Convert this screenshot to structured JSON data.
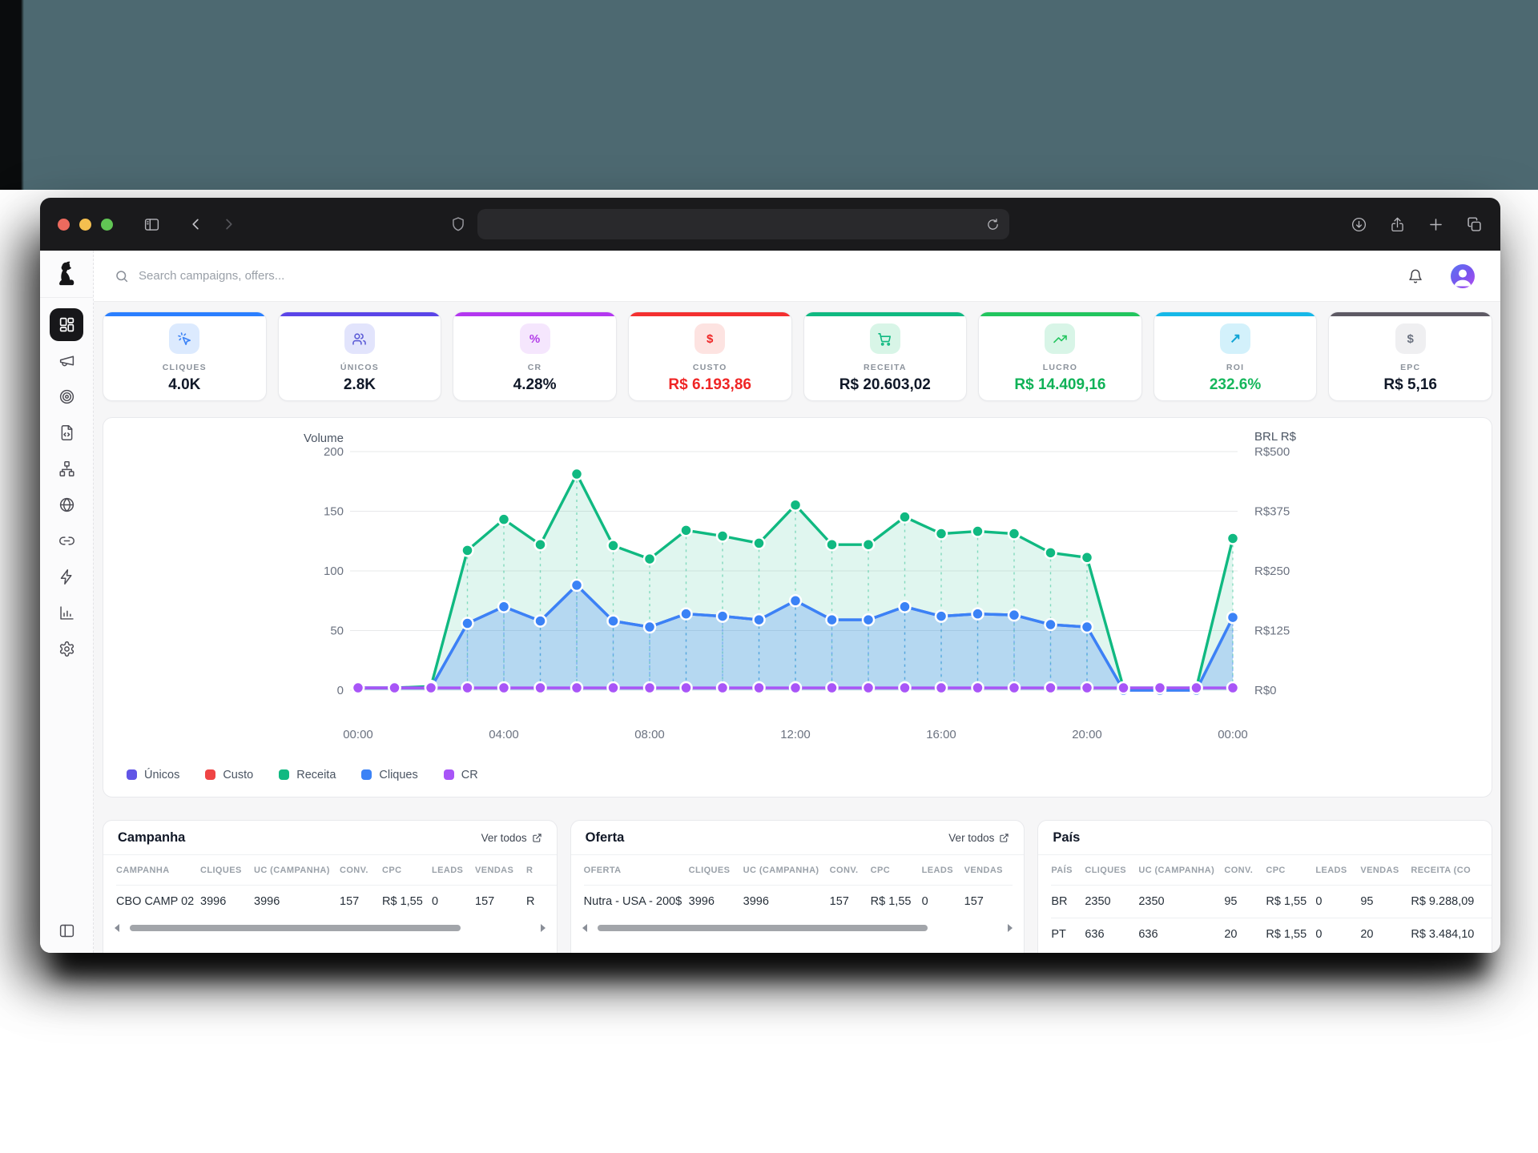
{
  "browser": {
    "traffic_lights": [
      "close",
      "minimize",
      "zoom"
    ],
    "traffic_colors": [
      "#ec6a5e",
      "#f4bf4f",
      "#61c554"
    ],
    "toolbar_icons_left": [
      "sidebar-toggle",
      "back",
      "forward"
    ],
    "url_value": "",
    "url_icons": [
      "shield",
      "reload"
    ],
    "toolbar_icons_right": [
      "download",
      "share",
      "new-tab",
      "tab-overview"
    ]
  },
  "sidebar": {
    "logo": "dog-logo",
    "items": [
      "dashboard",
      "megaphone",
      "target",
      "file-code",
      "sitemap",
      "globe",
      "link",
      "zap",
      "bar-chart",
      "gear"
    ],
    "active_index": 0,
    "collapse_icon": "panel-left"
  },
  "header": {
    "search_placeholder": "Search campaigns, offers...",
    "icons": [
      "bell",
      "avatar"
    ]
  },
  "kpis": [
    {
      "label": "CLIQUES",
      "value": "4.0K",
      "accent": "#2b7fff",
      "chip_bg": "#dceafe",
      "icon": "cursor-click",
      "icon_color": "#3b82f6",
      "value_color": "#101828"
    },
    {
      "label": "ÚNICOS",
      "value": "2.8K",
      "accent": "#5b45e8",
      "chip_bg": "#e2e4fc",
      "icon": "users",
      "icon_color": "#5b5bd6",
      "value_color": "#101828"
    },
    {
      "label": "CR",
      "value": "4.28%",
      "accent": "#b437f0",
      "chip_bg": "#f5e6fd",
      "icon": "percent",
      "icon_color": "#b23ce8",
      "value_color": "#101828"
    },
    {
      "label": "CUSTO",
      "value": "R$ 6.193,86",
      "accent": "#f43030",
      "chip_bg": "#fde3e1",
      "icon": "dollar",
      "icon_color": "#ef2525",
      "value_color": "#ef2525"
    },
    {
      "label": "RECEITA",
      "value": "R$ 20.603,02",
      "accent": "#10b981",
      "chip_bg": "#d8f5e7",
      "icon": "cart",
      "icon_color": "#10b981",
      "value_color": "#101828"
    },
    {
      "label": "LUCRO",
      "value": "R$ 14.409,16",
      "accent": "#22c55e",
      "chip_bg": "#d8f5e7",
      "icon": "trend-up",
      "icon_color": "#22c55e",
      "value_color": "#10b257"
    },
    {
      "label": "ROI",
      "value": "232.6%",
      "accent": "#16b8e8",
      "chip_bg": "#d3f1fb",
      "icon": "arrow-up-right",
      "icon_color": "#12a5d6",
      "value_color": "#16b75c"
    },
    {
      "label": "EPC",
      "value": "R$ 5,16",
      "accent": "#5e5a64",
      "chip_bg": "#efeff1",
      "icon": "dollar",
      "icon_color": "#6b7280",
      "value_color": "#101828"
    }
  ],
  "chart_data": {
    "type": "line",
    "title_left": "Volume",
    "title_right": "BRL R$",
    "left_ticks": [
      200,
      150,
      100,
      50,
      0
    ],
    "right_tick_labels": [
      "R$500",
      "R$375",
      "R$250",
      "R$125",
      "R$0"
    ],
    "x_tick_labels": [
      "00:00",
      "04:00",
      "08:00",
      "12:00",
      "16:00",
      "20:00",
      "00:00"
    ],
    "x_hours": [
      0,
      1,
      2,
      3,
      4,
      5,
      6,
      7,
      8,
      9,
      10,
      11,
      12,
      13,
      14,
      15,
      16,
      17,
      18,
      19,
      20,
      21,
      22,
      23,
      24
    ],
    "volume_axis_max": 200,
    "brl_axis_max": 500,
    "grid": true,
    "legend_position": "bottom-left",
    "series": [
      {
        "name": "Únicos",
        "color": "#6155e6",
        "axis": "volume",
        "fill": false,
        "dots": false,
        "values": [
          2,
          2,
          2,
          56,
          70,
          58,
          88,
          58,
          53,
          64,
          62,
          59,
          75,
          59,
          59,
          70,
          62,
          64,
          63,
          55,
          53,
          0,
          0,
          0,
          61
        ]
      },
      {
        "name": "Custo",
        "color": "#ef4444",
        "axis": "brl",
        "fill": false,
        "dots": false,
        "values": [
          4,
          4,
          4,
          4,
          4,
          4,
          4,
          4,
          4,
          4,
          4,
          4,
          4,
          4,
          4,
          4,
          4,
          4,
          4,
          4,
          4,
          4,
          4,
          4,
          4
        ]
      },
      {
        "name": "Receita",
        "color": "#10b981",
        "axis": "brl",
        "fill": true,
        "dots": true,
        "values": [
          5,
          5,
          8,
          293,
          358,
          305,
          453,
          303,
          275,
          335,
          323,
          308,
          388,
          305,
          305,
          363,
          328,
          333,
          328,
          288,
          278,
          5,
          5,
          5,
          318
        ]
      },
      {
        "name": "Cliques",
        "color": "#3b82f6",
        "axis": "volume",
        "fill": true,
        "dots": true,
        "values": [
          2,
          2,
          2,
          56,
          70,
          58,
          88,
          58,
          53,
          64,
          62,
          59,
          75,
          59,
          59,
          70,
          62,
          64,
          63,
          55,
          53,
          0,
          0,
          0,
          61
        ]
      },
      {
        "name": "CR",
        "color": "#a855f7",
        "axis": "volume",
        "fill": false,
        "dots": true,
        "values": [
          2,
          2,
          2,
          2,
          2,
          2,
          2,
          2,
          2,
          2,
          2,
          2,
          2,
          2,
          2,
          2,
          2,
          2,
          2,
          2,
          2,
          2,
          2,
          2,
          2
        ]
      }
    ]
  },
  "tables": [
    {
      "title": "Campanha",
      "link": "Ver todos",
      "columns": [
        "CAMPANHA",
        "CLIQUES",
        "UC (CAMPANHA)",
        "CONV.",
        "CPC",
        "LEADS",
        "VENDAS",
        "R"
      ],
      "widths": [
        105,
        67,
        107,
        53,
        62,
        54,
        64,
        60
      ],
      "rows": [
        [
          "CBO CAMP 02",
          "3996",
          "3996",
          "157",
          "R$ 1,55",
          "0",
          "157",
          "R"
        ]
      ],
      "scrollbar": true
    },
    {
      "title": "Oferta",
      "link": "Ver todos",
      "columns": [
        "OFERTA",
        "CLIQUES",
        "UC (CAMPANHA)",
        "CONV.",
        "CPC",
        "LEADS",
        "VENDAS"
      ],
      "widths": [
        131,
        68,
        108,
        51,
        64,
        53,
        60
      ],
      "rows": [
        [
          "Nutra - USA - 200$",
          "3996",
          "3996",
          "157",
          "R$ 1,55",
          "0",
          "157"
        ]
      ],
      "scrollbar": true
    },
    {
      "title": "País",
      "link": null,
      "columns": [
        "PAÍS",
        "CLIQUES",
        "UC (CAMPANHA)",
        "CONV.",
        "CPC",
        "LEADS",
        "VENDAS",
        "RECEITA (CO"
      ],
      "widths": [
        42,
        67,
        107,
        52,
        62,
        56,
        63,
        120
      ],
      "rows": [
        [
          "BR",
          "2350",
          "2350",
          "95",
          "R$ 1,55",
          "0",
          "95",
          "R$ 9.288,09"
        ],
        [
          "PT",
          "636",
          "636",
          "20",
          "R$ 1,55",
          "0",
          "20",
          "R$ 3.484,10"
        ]
      ],
      "scrollbar": false
    }
  ]
}
